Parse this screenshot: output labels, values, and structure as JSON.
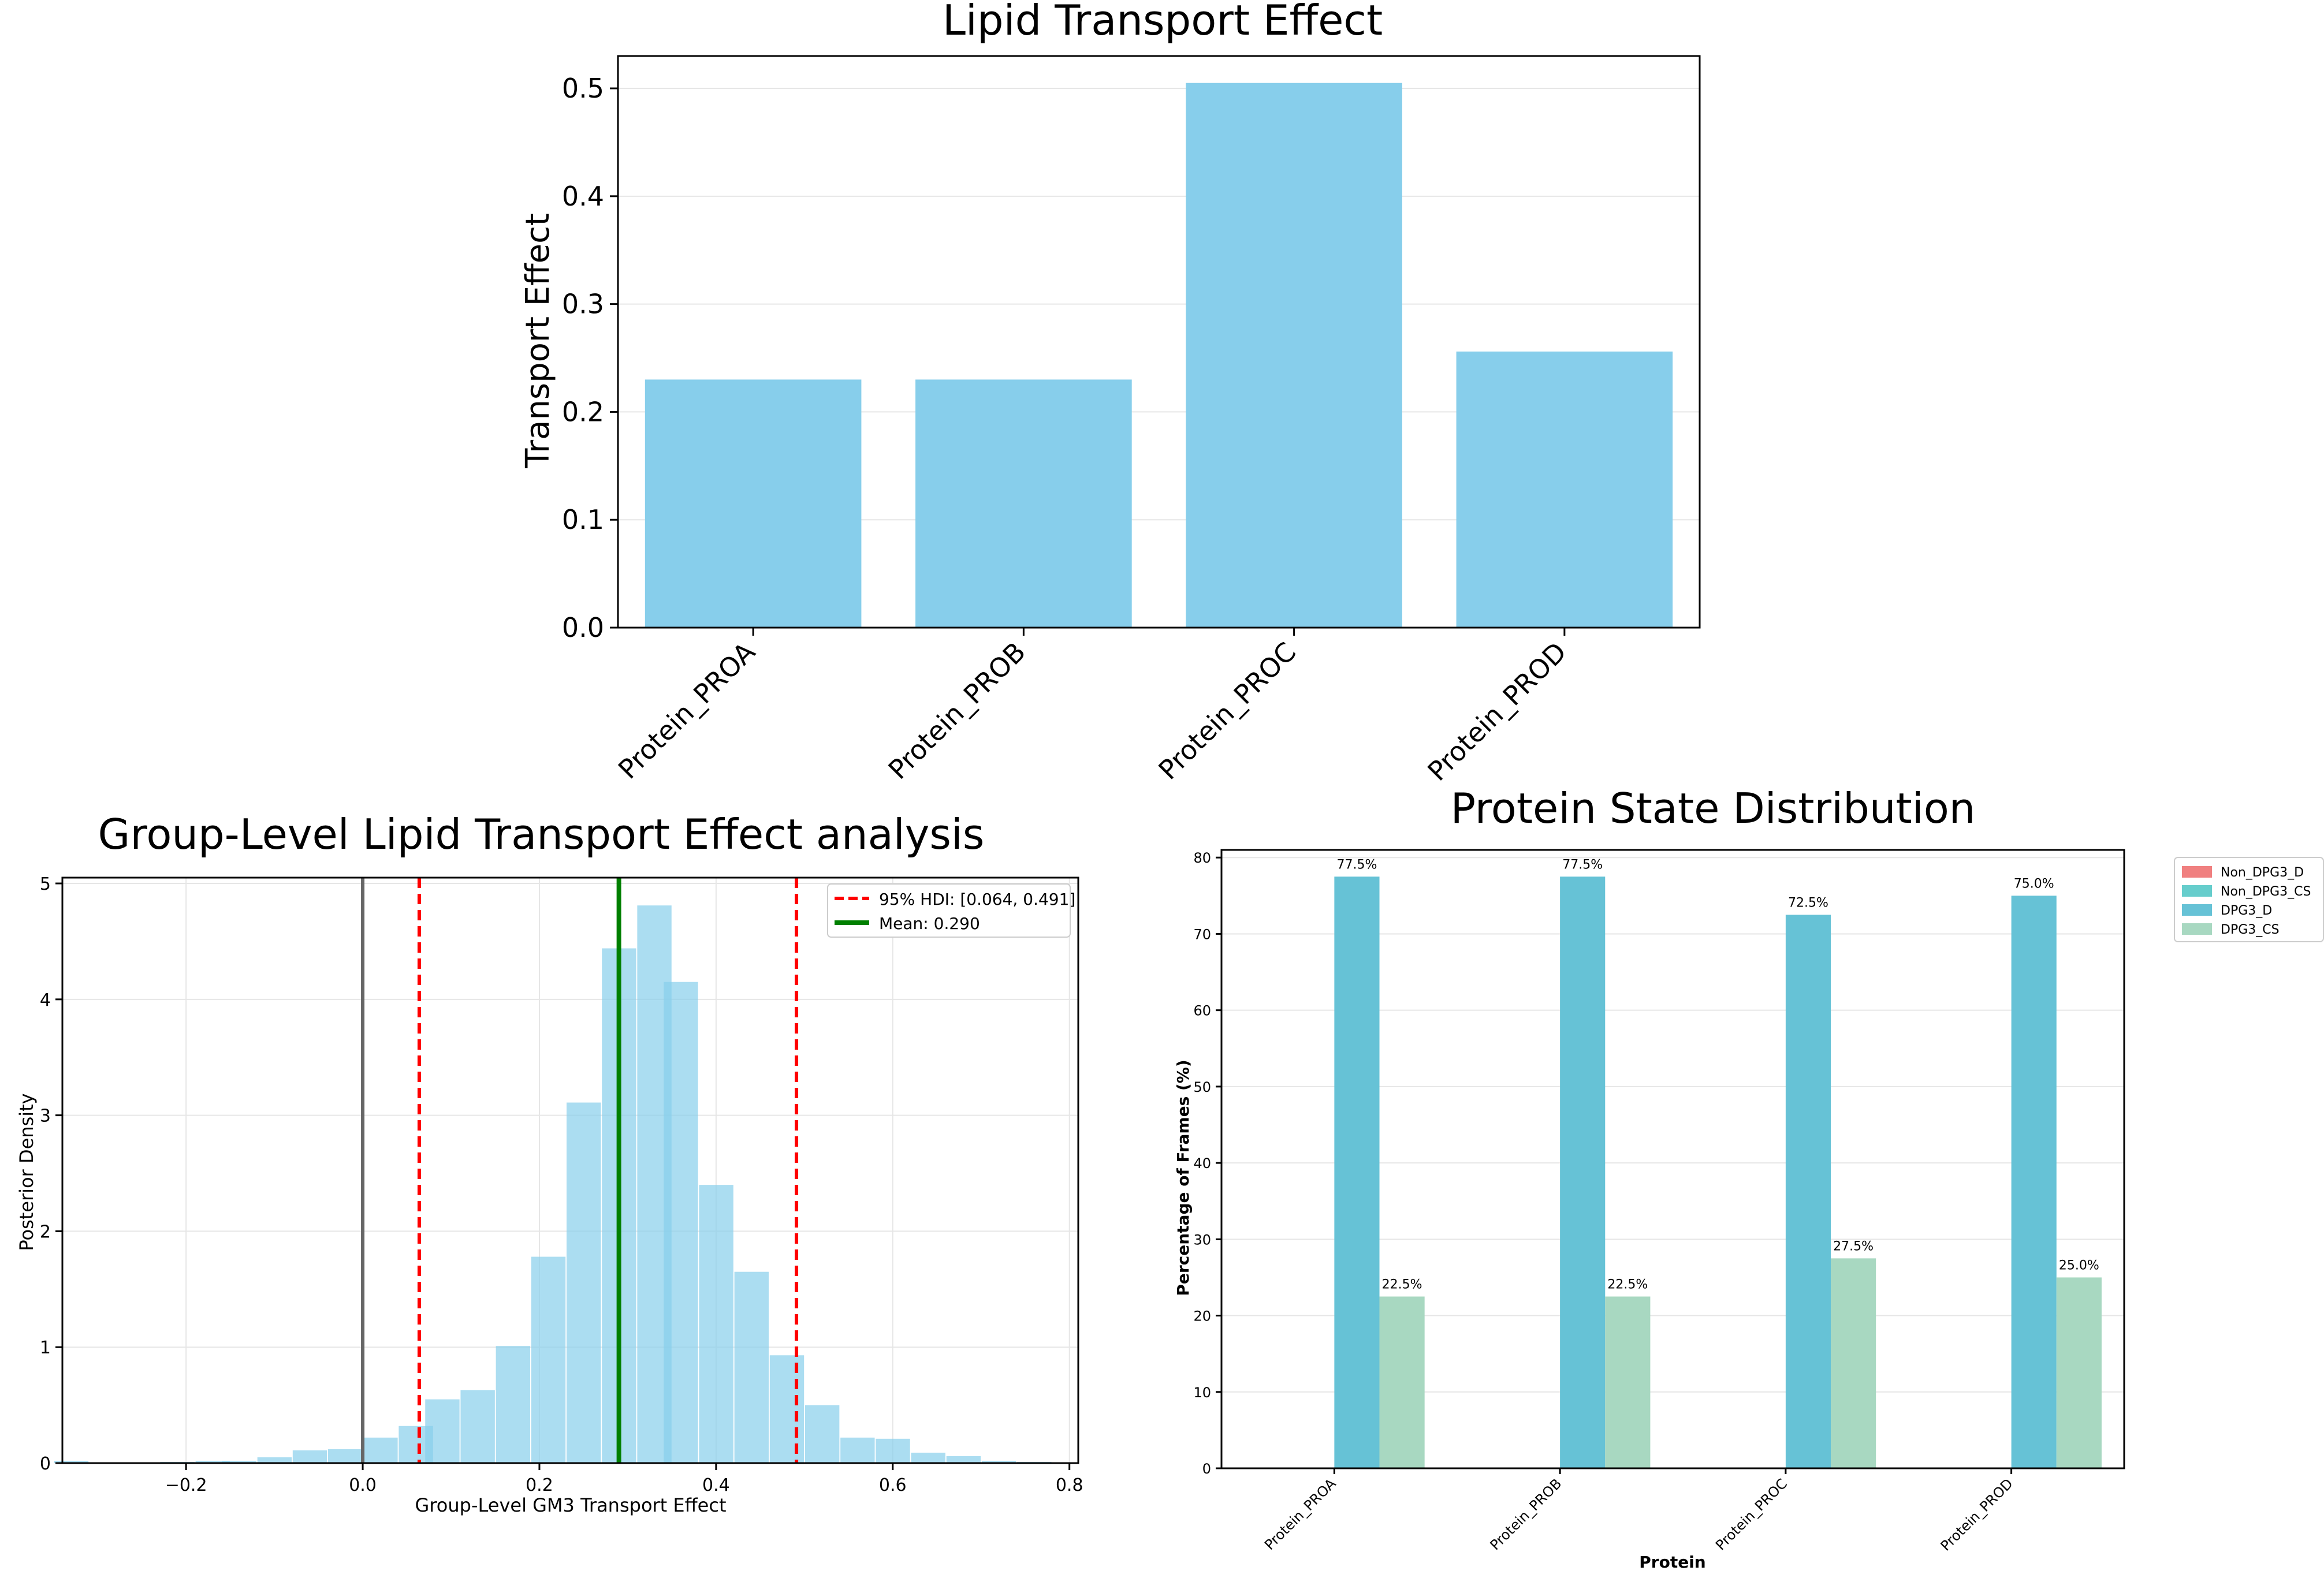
{
  "chart_data": [
    {
      "type": "bar",
      "title": "Lipid Transport Effect",
      "xlabel": "",
      "ylabel": "Transport Effect",
      "categories": [
        "Protein_PROA",
        "Protein_PROB",
        "Protein_PROC",
        "Protein_PROD"
      ],
      "values": [
        0.23,
        0.23,
        0.505,
        0.256
      ],
      "ylim": [
        0,
        0.53
      ],
      "yticks": [
        "0.0",
        "0.1",
        "0.2",
        "0.3",
        "0.4",
        "0.5"
      ],
      "grid": "y",
      "color": "#87CEEB"
    },
    {
      "type": "bar",
      "title": "Group-Level Lipid Transport Effect analysis",
      "xlabel": "Group-Level GM3 Transport Effect",
      "ylabel": "Posterior Density",
      "xlim": [
        -0.34,
        0.81
      ],
      "ylim": [
        0,
        5.05
      ],
      "xticks": [
        "−0.2",
        "0.0",
        "0.2",
        "0.4",
        "0.6",
        "0.8"
      ],
      "yticks": [
        "0",
        "1",
        "2",
        "3",
        "4",
        "5"
      ],
      "bin_width": 0.0385,
      "bins": [
        {
          "x": -0.33,
          "y": 0.02
        },
        {
          "x": -0.29,
          "y": 0.005
        },
        {
          "x": -0.25,
          "y": 0.0
        },
        {
          "x": -0.21,
          "y": 0.01
        },
        {
          "x": -0.17,
          "y": 0.02
        },
        {
          "x": -0.14,
          "y": 0.02
        },
        {
          "x": -0.1,
          "y": 0.05
        },
        {
          "x": -0.06,
          "y": 0.11
        },
        {
          "x": -0.02,
          "y": 0.12
        },
        {
          "x": 0.02,
          "y": 0.22
        },
        {
          "x": 0.06,
          "y": 0.32
        },
        {
          "x": 0.09,
          "y": 0.55
        },
        {
          "x": 0.13,
          "y": 0.63
        },
        {
          "x": 0.17,
          "y": 1.01
        },
        {
          "x": 0.21,
          "y": 1.78
        },
        {
          "x": 0.25,
          "y": 3.11
        },
        {
          "x": 0.29,
          "y": 4.44
        },
        {
          "x": 0.33,
          "y": 4.81
        },
        {
          "x": 0.36,
          "y": 4.15
        },
        {
          "x": 0.4,
          "y": 2.4
        },
        {
          "x": 0.44,
          "y": 1.65
        },
        {
          "x": 0.48,
          "y": 0.93
        },
        {
          "x": 0.52,
          "y": 0.5
        },
        {
          "x": 0.56,
          "y": 0.22
        },
        {
          "x": 0.6,
          "y": 0.21
        },
        {
          "x": 0.64,
          "y": 0.09
        },
        {
          "x": 0.68,
          "y": 0.06
        },
        {
          "x": 0.72,
          "y": 0.02
        },
        {
          "x": 0.76,
          "y": 0.01
        }
      ],
      "color": "#87CEEB",
      "zero_line": 0.0,
      "hdi": [
        0.064,
        0.491
      ],
      "mean": 0.29,
      "legend": [
        "95% HDI: [0.064, 0.491]",
        "Mean: 0.290"
      ],
      "legend_position": "top-right",
      "grid": "both"
    },
    {
      "type": "bar",
      "title": "Protein State Distribution",
      "xlabel": "Protein",
      "ylabel": "Percentage of Frames (%)",
      "categories": [
        "Protein_PROA",
        "Protein_PROB",
        "Protein_PROC",
        "Protein_PROD"
      ],
      "ylim": [
        0,
        81
      ],
      "yticks": [
        "0",
        "10",
        "20",
        "30",
        "40",
        "50",
        "60",
        "70",
        "80"
      ],
      "series": [
        {
          "name": "Non_DPG3_D",
          "values": [
            0,
            0,
            0,
            0
          ],
          "labels": [
            "",
            "",
            "",
            ""
          ],
          "color": "#F08080"
        },
        {
          "name": "Non_DPG3_CS",
          "values": [
            0,
            0,
            0,
            0
          ],
          "labels": [
            "",
            "",
            "",
            ""
          ],
          "color": "#66CDCC"
        },
        {
          "name": "DPG3_D",
          "values": [
            77.5,
            77.5,
            72.5,
            75.0
          ],
          "labels": [
            "77.5%",
            "77.5%",
            "72.5%",
            "75.0%"
          ],
          "color": "#66C2D6"
        },
        {
          "name": "DPG3_CS",
          "values": [
            22.5,
            22.5,
            27.5,
            25.0
          ],
          "labels": [
            "22.5%",
            "22.5%",
            "27.5%",
            "25.0%"
          ],
          "color": "#A8D8C1"
        }
      ],
      "legend_position": "outside-right",
      "grid": "y"
    }
  ]
}
